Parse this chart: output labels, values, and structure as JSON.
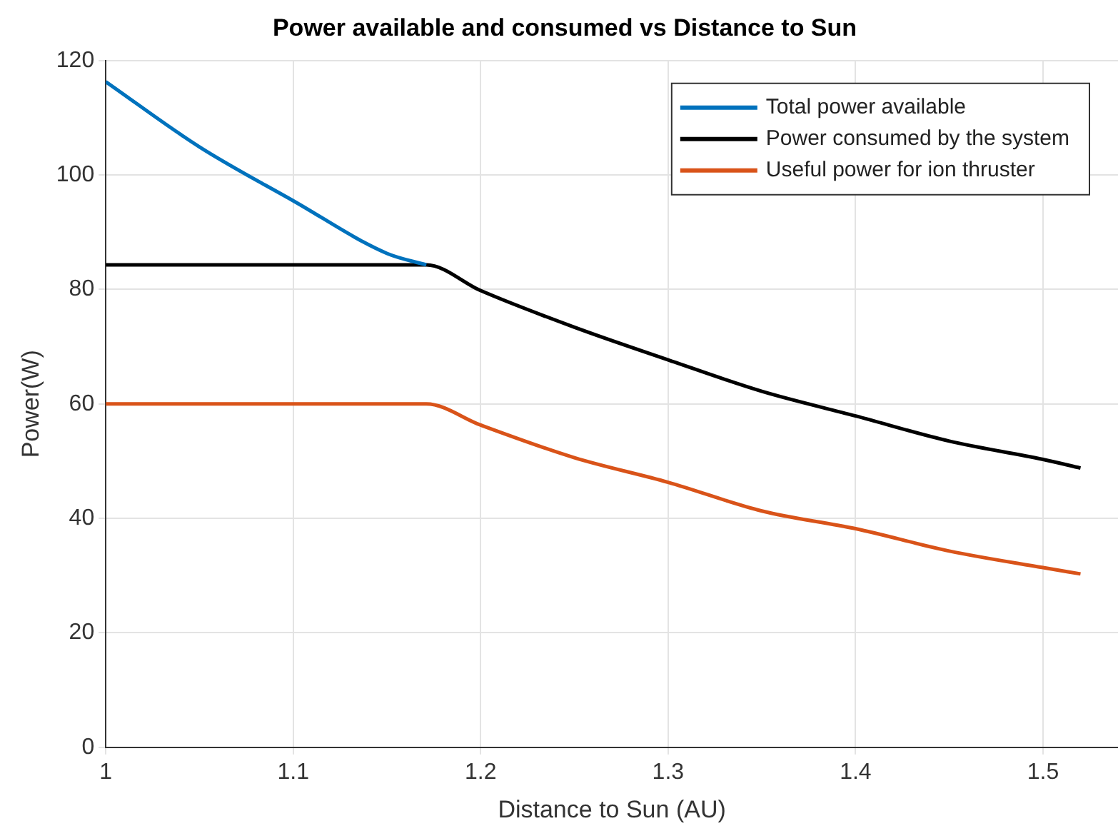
{
  "chart_data": {
    "type": "line",
    "title": "Power available and consumed vs Distance to Sun",
    "xlabel": "Distance to Sun (AU)",
    "ylabel": "Power(W)",
    "xlim": [
      1,
      1.54
    ],
    "xticks": [
      1,
      1.1,
      1.2,
      1.3,
      1.4,
      1.5
    ],
    "ylim": [
      0,
      120
    ],
    "yticks": [
      0,
      20,
      40,
      60,
      80,
      100,
      120
    ],
    "grid": true,
    "legend": "top right",
    "marker": "none",
    "line_style": "solid",
    "series": [
      {
        "name": "Total power available",
        "color": "#0072bd",
        "x": [
          1,
          1.05,
          1.1,
          1.15,
          1.171
        ],
        "values": [
          116.3,
          104.9,
          95.5,
          86.3,
          84.3
        ]
      },
      {
        "name": "Power consumed by the system",
        "color": "#000000",
        "x": [
          1,
          1.171,
          1.2,
          1.25,
          1.3,
          1.35,
          1.4,
          1.45,
          1.5,
          1.52
        ],
        "values": [
          84.3,
          84.3,
          79.8,
          73.4,
          67.7,
          62.2,
          57.9,
          53.5,
          50.3,
          48.8
        ]
      },
      {
        "name": "Useful power for ion thruster",
        "color": "#d95319",
        "x": [
          1,
          1.171,
          1.2,
          1.25,
          1.3,
          1.35,
          1.4,
          1.45,
          1.5,
          1.52
        ],
        "values": [
          60,
          60,
          56.3,
          50.6,
          46.3,
          41.3,
          38.2,
          34.3,
          31.4,
          30.3
        ]
      }
    ]
  }
}
